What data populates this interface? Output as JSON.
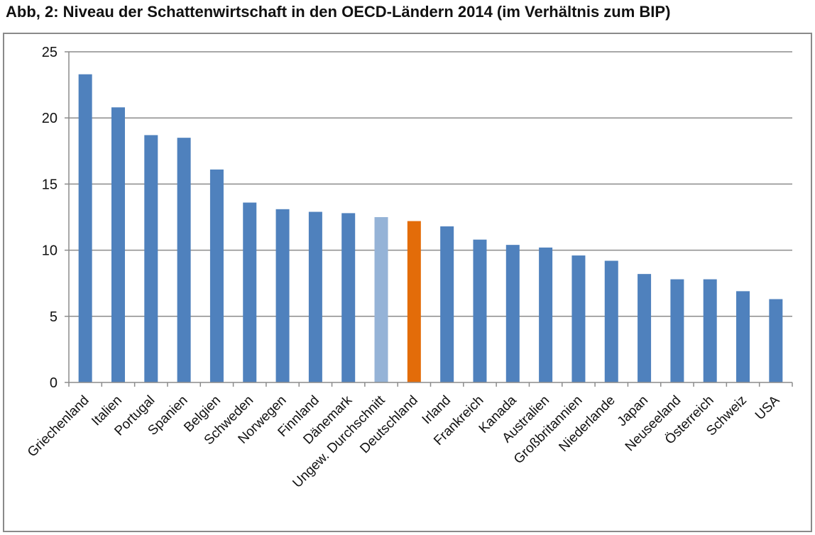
{
  "title": "Abb, 2: Niveau der Schattenwirtschaft in den OECD-Ländern 2014 (im Verhältnis zum BIP)",
  "chart_data": {
    "type": "bar",
    "title": "Abb, 2: Niveau der Schattenwirtschaft in den OECD-Ländern 2014 (im Verhältnis zum BIP)",
    "xlabel": "",
    "ylabel": "",
    "ylim": [
      0,
      25
    ],
    "yticks": [
      0,
      5,
      10,
      15,
      20,
      25
    ],
    "grid": true,
    "categories": [
      "Griechenland",
      "Italien",
      "Portugal",
      "Spanien",
      "Belgien",
      "Schweden",
      "Norwegen",
      "Finnland",
      "Dänemark",
      "Ungew. Durchschnitt",
      "Deutschland",
      "Irland",
      "Frankreich",
      "Kanada",
      "Australien",
      "Großbritannien",
      "Niederlande",
      "Japan",
      "Neuseeland",
      "Österreich",
      "Schweiz",
      "USA"
    ],
    "values": [
      23.3,
      20.8,
      18.7,
      18.5,
      16.1,
      13.6,
      13.1,
      12.9,
      12.8,
      12.5,
      12.2,
      11.8,
      10.8,
      10.4,
      10.2,
      9.6,
      9.2,
      8.2,
      7.8,
      7.8,
      6.9,
      6.3
    ],
    "colors": {
      "default": "#4f81bd",
      "Ungew. Durchschnitt": "#95b3d7",
      "Deutschland": "#e36c09"
    }
  }
}
